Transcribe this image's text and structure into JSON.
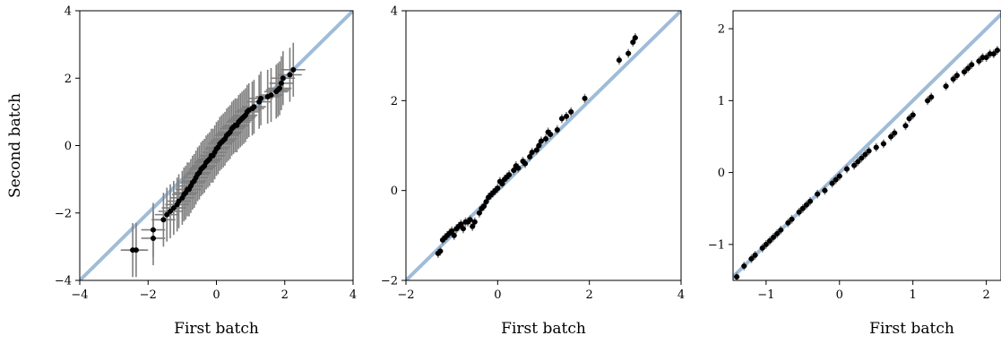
{
  "colors": {
    "reference_line": "#9fbcd8",
    "error_bar": "#7f7f7f",
    "point": "#000000",
    "axes": "#000000",
    "background": "#ffffff"
  },
  "chart_data": [
    {
      "type": "scatter",
      "xlabel": "First batch",
      "ylabel": "Second batch",
      "xlim": [
        -4,
        4
      ],
      "ylim": [
        -4,
        4
      ],
      "xticks": [
        -4,
        -2,
        0,
        2,
        4
      ],
      "yticks": [
        -4,
        -2,
        0,
        2,
        4
      ],
      "xtick_labels": [
        "−4",
        "−2",
        "0",
        "2",
        "4"
      ],
      "ytick_labels": [
        "−4",
        "−2",
        "0",
        "2",
        "4"
      ],
      "reference_line": "y = x",
      "grid": false,
      "legend": "none",
      "x": [
        -2.45,
        -2.35,
        -1.85,
        -1.85,
        -1.55,
        -1.45,
        -1.35,
        -1.25,
        -1.15,
        -1.1,
        -1.0,
        -0.95,
        -0.9,
        -0.85,
        -0.8,
        -0.75,
        -0.7,
        -0.65,
        -0.6,
        -0.55,
        -0.5,
        -0.45,
        -0.4,
        -0.35,
        -0.3,
        -0.25,
        -0.2,
        -0.15,
        -0.1,
        -0.05,
        0.0,
        0.05,
        0.1,
        0.15,
        0.2,
        0.25,
        0.3,
        0.35,
        0.4,
        0.45,
        0.5,
        0.55,
        0.6,
        0.65,
        0.7,
        0.75,
        0.8,
        0.85,
        0.9,
        0.95,
        1.05,
        1.1,
        1.25,
        1.3,
        1.5,
        1.6,
        1.75,
        1.8,
        1.85,
        1.9,
        1.95,
        2.15,
        2.25
      ],
      "y": [
        -3.1,
        -3.1,
        -2.75,
        -2.5,
        -2.2,
        -2.05,
        -1.95,
        -1.85,
        -1.75,
        -1.65,
        -1.55,
        -1.45,
        -1.4,
        -1.3,
        -1.3,
        -1.2,
        -1.1,
        -1.05,
        -0.95,
        -0.85,
        -0.8,
        -0.7,
        -0.65,
        -0.6,
        -0.5,
        -0.45,
        -0.4,
        -0.3,
        -0.3,
        -0.2,
        -0.1,
        -0.05,
        0.05,
        0.1,
        0.15,
        0.2,
        0.3,
        0.35,
        0.4,
        0.5,
        0.55,
        0.6,
        0.6,
        0.7,
        0.75,
        0.8,
        0.85,
        0.9,
        1.0,
        1.05,
        1.1,
        1.15,
        1.3,
        1.4,
        1.45,
        1.5,
        1.6,
        1.65,
        1.7,
        1.85,
        2.0,
        2.1,
        2.25
      ],
      "x_error": 0.35,
      "y_error": 0.8
    },
    {
      "type": "scatter",
      "xlabel": "First batch",
      "ylabel": "",
      "xlim": [
        -2,
        4
      ],
      "ylim": [
        -2,
        4
      ],
      "xticks": [
        -2,
        0,
        2,
        4
      ],
      "yticks": [
        -2,
        0,
        2,
        4
      ],
      "xtick_labels": [
        "−2",
        "0",
        "2",
        "4"
      ],
      "ytick_labels": [
        "−2",
        "0",
        "2",
        "4"
      ],
      "reference_line": "y = x",
      "grid": false,
      "legend": "none",
      "x": [
        -1.3,
        -1.25,
        -1.2,
        -1.15,
        -1.1,
        -1.05,
        -1.0,
        -0.95,
        -0.9,
        -0.85,
        -0.8,
        -0.75,
        -0.7,
        -0.65,
        -0.6,
        -0.55,
        -0.5,
        -0.4,
        -0.35,
        -0.3,
        -0.25,
        -0.2,
        -0.15,
        -0.1,
        -0.05,
        0.0,
        0.05,
        0.1,
        0.15,
        0.2,
        0.25,
        0.35,
        0.4,
        0.45,
        0.55,
        0.6,
        0.7,
        0.75,
        0.85,
        0.9,
        0.95,
        1.05,
        1.1,
        1.15,
        1.3,
        1.4,
        1.5,
        1.6,
        1.9,
        2.65,
        2.85,
        2.95,
        3.0
      ],
      "y": [
        -1.4,
        -1.35,
        -1.1,
        -1.05,
        -1.0,
        -0.95,
        -0.9,
        -1.0,
        -0.85,
        -0.8,
        -0.75,
        -0.85,
        -0.7,
        -0.7,
        -0.65,
        -0.8,
        -0.7,
        -0.5,
        -0.4,
        -0.35,
        -0.25,
        -0.15,
        -0.1,
        -0.05,
        0.0,
        0.05,
        0.2,
        0.15,
        0.25,
        0.3,
        0.35,
        0.45,
        0.55,
        0.5,
        0.65,
        0.6,
        0.75,
        0.85,
        0.9,
        1.0,
        1.1,
        1.15,
        1.3,
        1.25,
        1.35,
        1.6,
        1.65,
        1.75,
        2.05,
        2.9,
        3.05,
        3.3,
        3.4
      ],
      "x_error": 0.06,
      "y_error": 0.1
    },
    {
      "type": "scatter",
      "xlabel": "First batch",
      "ylabel": "",
      "xlim": [
        -1.45,
        2.2
      ],
      "ylim": [
        -1.5,
        2.25
      ],
      "xticks": [
        -1,
        0,
        1,
        2
      ],
      "yticks": [
        -1,
        0,
        1,
        2
      ],
      "xtick_labels": [
        "−1",
        "0",
        "1",
        "2"
      ],
      "ytick_labels": [
        "−1",
        "0",
        "1",
        "2"
      ],
      "reference_line": "y = x",
      "grid": false,
      "legend": "none",
      "x": [
        -1.4,
        -1.3,
        -1.2,
        -1.15,
        -1.05,
        -1.0,
        -0.95,
        -0.9,
        -0.85,
        -0.8,
        -0.7,
        -0.65,
        -0.55,
        -0.5,
        -0.45,
        -0.4,
        -0.3,
        -0.2,
        -0.1,
        -0.05,
        0.0,
        0.1,
        0.2,
        0.25,
        0.3,
        0.35,
        0.4,
        0.5,
        0.6,
        0.7,
        0.75,
        0.9,
        0.95,
        1.0,
        1.2,
        1.25,
        1.45,
        1.55,
        1.6,
        1.7,
        1.75,
        1.8,
        1.9,
        1.95,
        2.0,
        2.05,
        2.1,
        2.15
      ],
      "y": [
        -1.45,
        -1.3,
        -1.2,
        -1.15,
        -1.05,
        -1.0,
        -0.95,
        -0.9,
        -0.85,
        -0.8,
        -0.7,
        -0.65,
        -0.55,
        -0.5,
        -0.45,
        -0.4,
        -0.3,
        -0.25,
        -0.15,
        -0.1,
        -0.05,
        0.05,
        0.1,
        0.15,
        0.2,
        0.25,
        0.3,
        0.35,
        0.4,
        0.5,
        0.55,
        0.65,
        0.75,
        0.8,
        1.0,
        1.05,
        1.2,
        1.3,
        1.35,
        1.4,
        1.45,
        1.5,
        1.55,
        1.6,
        1.6,
        1.65,
        1.65,
        1.7
      ],
      "x_error": 0.04,
      "y_error": 0.06
    }
  ]
}
